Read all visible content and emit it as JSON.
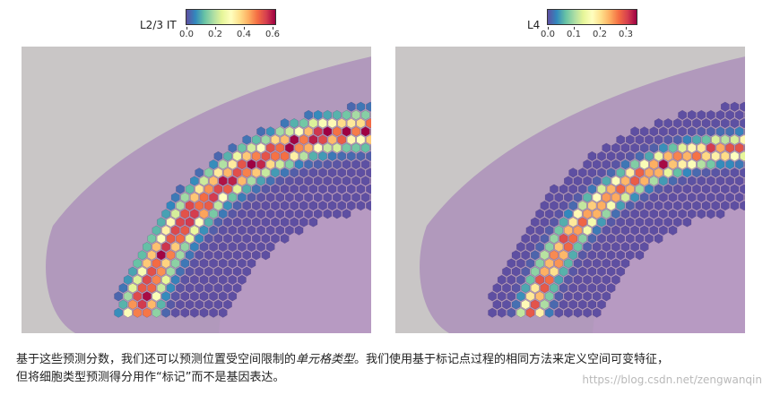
{
  "panels": [
    {
      "name": "L2/3 IT",
      "ticks": [
        "0.0",
        "0.2",
        "0.4",
        "0.6"
      ],
      "band_peak": 0.6
    },
    {
      "name": "L4",
      "ticks": [
        "0.0",
        "0.1",
        "0.2",
        "0.3"
      ],
      "band_peak": 0.3
    }
  ],
  "caption": {
    "part1": "基于这些预测分数，我们还可以预测位置受空间限制的",
    "italic": "单元格类型",
    "part2": "。我们使用基于标记点过程的相同方法来定义空间可变特征，",
    "line2": "但将细胞类型预测得分用作“标记”而不是基因表达。"
  },
  "watermark": "https://blog.csdn.net/zengwanqin",
  "colors": {
    "spot_low": "#5e4fa2",
    "spot_high": "#9e0142",
    "tissue": "#a889b8",
    "background": "#c9c6c6"
  }
}
